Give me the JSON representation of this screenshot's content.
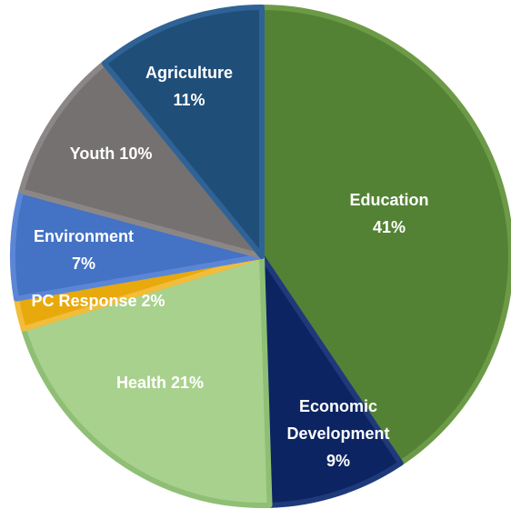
{
  "chart_data": {
    "type": "pie",
    "start_angle_deg": 0,
    "direction": "clockwise",
    "slices": [
      {
        "label": "Education",
        "value": 41,
        "display": [
          "Education",
          "41%"
        ],
        "color": "#548235",
        "edge": "#6d9a46"
      },
      {
        "label": "Economic Development",
        "value": 9,
        "display": [
          "Economic",
          "Development",
          "9%"
        ],
        "color": "#0c2461",
        "edge": "#1f3a7a"
      },
      {
        "label": "Health",
        "value": 21,
        "display": [
          "Health 21%"
        ],
        "color": "#a9d18e",
        "edge": "#8fbf74"
      },
      {
        "label": "PC Response",
        "value": 2,
        "display": [
          "PC Response 2%"
        ],
        "color": "#e8a90c",
        "edge": "#f2bd3a"
      },
      {
        "label": "Environment",
        "value": 7,
        "display": [
          "Environment",
          "7%"
        ],
        "color": "#4472c4",
        "edge": "#5b86d6"
      },
      {
        "label": "Youth",
        "value": 10,
        "display": [
          "Youth 10%"
        ],
        "color": "#767171",
        "edge": "#8c8787"
      },
      {
        "label": "Agriculture",
        "value": 11,
        "display": [
          "Agriculture",
          "11%"
        ],
        "color": "#1f4e79",
        "edge": "#2f6396"
      }
    ]
  }
}
